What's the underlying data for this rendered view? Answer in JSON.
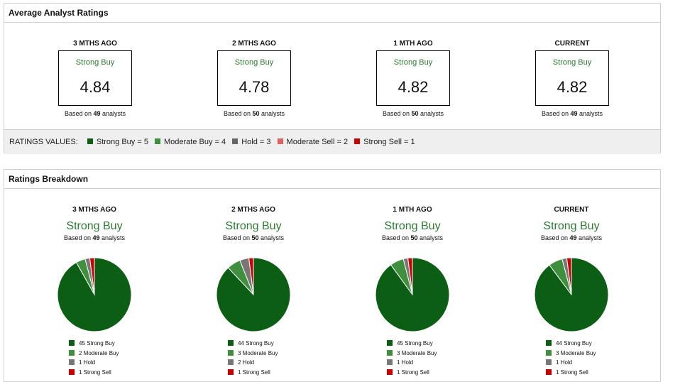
{
  "average_panel": {
    "title": "Average Analyst Ratings",
    "columns": [
      {
        "period": "3 MTHS AGO",
        "rating": "Strong Buy",
        "value": "4.84",
        "based_prefix": "Based on",
        "analysts": "49",
        "based_suffix": "analysts"
      },
      {
        "period": "2 MTHS AGO",
        "rating": "Strong Buy",
        "value": "4.78",
        "based_prefix": "Based on",
        "analysts": "50",
        "based_suffix": "analysts"
      },
      {
        "period": "1 MTH AGO",
        "rating": "Strong Buy",
        "value": "4.82",
        "based_prefix": "Based on",
        "analysts": "50",
        "based_suffix": "analysts"
      },
      {
        "period": "CURRENT",
        "rating": "Strong Buy",
        "value": "4.82",
        "based_prefix": "Based on",
        "analysts": "49",
        "based_suffix": "analysts"
      }
    ],
    "ratings_values": {
      "label": "RATINGS VALUES:",
      "items": [
        {
          "label": "Strong Buy = 5",
          "color": "#0b5e14"
        },
        {
          "label": "Moderate Buy = 4",
          "color": "#3f8f3f"
        },
        {
          "label": "Hold = 3",
          "color": "#666666"
        },
        {
          "label": "Moderate Sell = 2",
          "color": "#e06060"
        },
        {
          "label": "Strong Sell = 1",
          "color": "#cc0000"
        }
      ]
    }
  },
  "breakdown_panel": {
    "title": "Ratings Breakdown",
    "columns": [
      {
        "period": "3 MTHS AGO",
        "rating": "Strong Buy",
        "based_prefix": "Based on",
        "analysts": "49",
        "based_suffix": "analysts",
        "legend": [
          "45 Strong Buy",
          "2 Moderate Buy",
          "1 Hold",
          "1 Strong Sell"
        ]
      },
      {
        "period": "2 MTHS AGO",
        "rating": "Strong Buy",
        "based_prefix": "Based on",
        "analysts": "50",
        "based_suffix": "analysts",
        "legend": [
          "44 Strong Buy",
          "3 Moderate Buy",
          "2 Hold",
          "1 Strong Sell"
        ]
      },
      {
        "period": "1 MTH AGO",
        "rating": "Strong Buy",
        "based_prefix": "Based on",
        "analysts": "50",
        "based_suffix": "analysts",
        "legend": [
          "45 Strong Buy",
          "3 Moderate Buy",
          "1 Hold",
          "1 Strong Sell"
        ]
      },
      {
        "period": "CURRENT",
        "rating": "Strong Buy",
        "based_prefix": "Based on",
        "analysts": "49",
        "based_suffix": "analysts",
        "legend": [
          "44 Strong Buy",
          "3 Moderate Buy",
          "1 Hold",
          "1 Strong Sell"
        ]
      }
    ],
    "legend_colors": [
      "#0b5e14",
      "#3f8f3f",
      "#777777",
      "#cc0000"
    ]
  },
  "chart_data": [
    {
      "type": "pie",
      "title": "3 MTHS AGO",
      "categories": [
        "Strong Buy",
        "Moderate Buy",
        "Hold",
        "Strong Sell"
      ],
      "values": [
        45,
        2,
        1,
        1
      ]
    },
    {
      "type": "pie",
      "title": "2 MTHS AGO",
      "categories": [
        "Strong Buy",
        "Moderate Buy",
        "Hold",
        "Strong Sell"
      ],
      "values": [
        44,
        3,
        2,
        1
      ]
    },
    {
      "type": "pie",
      "title": "1 MTH AGO",
      "categories": [
        "Strong Buy",
        "Moderate Buy",
        "Hold",
        "Strong Sell"
      ],
      "values": [
        45,
        3,
        1,
        1
      ]
    },
    {
      "type": "pie",
      "title": "CURRENT",
      "categories": [
        "Strong Buy",
        "Moderate Buy",
        "Hold",
        "Strong Sell"
      ],
      "values": [
        44,
        3,
        1,
        1
      ]
    }
  ]
}
